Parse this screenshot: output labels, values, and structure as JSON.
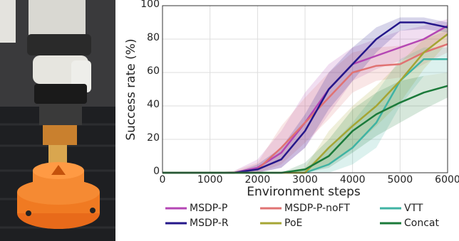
{
  "chart_data": {
    "type": "line",
    "xlabel": "Environment steps",
    "ylabel": "Success rate (%)",
    "x": [
      0,
      500,
      1000,
      1500,
      2000,
      2500,
      3000,
      3500,
      4000,
      4500,
      5000,
      5500,
      6000
    ],
    "xlim": [
      0,
      6000
    ],
    "xticks": [
      0,
      1000,
      2000,
      3000,
      4000,
      5000,
      6000
    ],
    "ylim": [
      0,
      100
    ],
    "yticks": [
      0,
      20,
      40,
      60,
      80,
      100
    ],
    "grid": true,
    "series": [
      {
        "name": "MSDP-P",
        "color": "#b446b4",
        "values": [
          0,
          0,
          0,
          0,
          3,
          12,
          30,
          50,
          65,
          70,
          75,
          80,
          88
        ],
        "lower": [
          0,
          0,
          0,
          0,
          0,
          3,
          15,
          35,
          55,
          62,
          67,
          72,
          82
        ],
        "upper": [
          0,
          0,
          0,
          1,
          8,
          25,
          48,
          65,
          75,
          80,
          85,
          88,
          92
        ]
      },
      {
        "name": "MSDP-P-noFT",
        "color": "#e07272",
        "values": [
          0,
          0,
          0,
          0,
          2,
          15,
          30,
          45,
          60,
          64,
          65,
          72,
          77
        ],
        "lower": [
          0,
          0,
          0,
          0,
          0,
          5,
          18,
          32,
          48,
          55,
          57,
          65,
          72
        ],
        "upper": [
          0,
          0,
          0,
          1,
          6,
          28,
          45,
          60,
          72,
          75,
          76,
          80,
          85
        ]
      },
      {
        "name": "VTT",
        "color": "#3fb3a3",
        "values": [
          0,
          0,
          0,
          0,
          0,
          0,
          0,
          5,
          15,
          30,
          55,
          68,
          68
        ],
        "lower": [
          0,
          0,
          0,
          0,
          0,
          0,
          0,
          0,
          5,
          15,
          40,
          58,
          60
        ],
        "upper": [
          0,
          0,
          0,
          0,
          0,
          0,
          2,
          15,
          30,
          48,
          68,
          75,
          75
        ]
      },
      {
        "name": "MSDP-R",
        "color": "#24178a",
        "values": [
          0,
          0,
          0,
          0,
          2,
          8,
          25,
          50,
          65,
          80,
          90,
          90,
          87
        ],
        "lower": [
          0,
          0,
          0,
          0,
          0,
          3,
          15,
          38,
          55,
          72,
          85,
          86,
          84
        ],
        "upper": [
          0,
          0,
          0,
          0,
          5,
          15,
          35,
          60,
          75,
          87,
          93,
          93,
          90
        ]
      },
      {
        "name": "PoE",
        "color": "#a5a534",
        "values": [
          0,
          0,
          0,
          0,
          0,
          0,
          0,
          15,
          28,
          40,
          55,
          72,
          83
        ],
        "lower": [
          0,
          0,
          0,
          0,
          0,
          0,
          0,
          5,
          15,
          28,
          42,
          62,
          78
        ],
        "upper": [
          0,
          0,
          0,
          0,
          0,
          0,
          3,
          25,
          40,
          52,
          66,
          80,
          88
        ]
      },
      {
        "name": "Concat",
        "color": "#1b7a3a",
        "values": [
          0,
          0,
          0,
          0,
          0,
          0,
          2,
          10,
          25,
          35,
          42,
          48,
          52
        ],
        "lower": [
          0,
          0,
          0,
          0,
          0,
          0,
          0,
          3,
          12,
          22,
          30,
          38,
          45
        ],
        "upper": [
          0,
          0,
          0,
          0,
          0,
          0,
          6,
          20,
          38,
          48,
          55,
          58,
          60
        ]
      }
    ]
  }
}
